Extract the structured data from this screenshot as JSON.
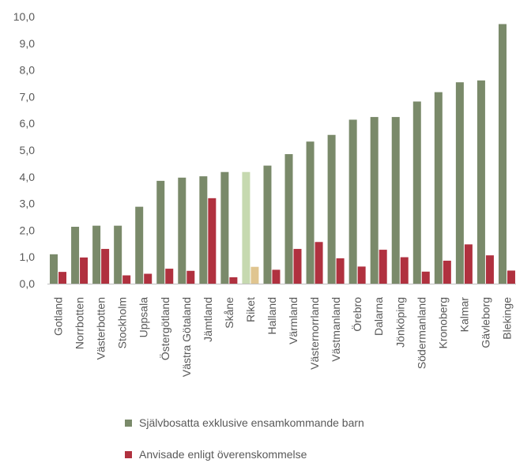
{
  "chart_data": {
    "type": "bar",
    "categories": [
      "Gotland",
      "Norrbotten",
      "Västerbotten",
      "Stockholm",
      "Uppsala",
      "Östergötland",
      "Västra Götaland",
      "Jämtland",
      "Skåne",
      "Riket",
      "Halland",
      "Värmland",
      "Västernorrland",
      "Västmanland",
      "Örebro",
      "Dalarna",
      "Jönköping",
      "Södermanland",
      "Kronoberg",
      "Kalmar",
      "Gävleborg",
      "Blekinge"
    ],
    "series": [
      {
        "name": "Självbosatta exklusive ensamkommande barn",
        "color": "#7a8a6a",
        "highlight_color": "#c6d9b0",
        "values": [
          1.1,
          2.13,
          2.17,
          2.17,
          2.88,
          3.85,
          3.97,
          4.02,
          4.18,
          4.18,
          4.42,
          4.85,
          5.32,
          5.57,
          6.14,
          6.24,
          6.24,
          6.82,
          7.17,
          7.54,
          7.61,
          9.72
        ]
      },
      {
        "name": "Anvisade enligt överenskommelse",
        "color": "#b0313f",
        "highlight_color": "#e0c590",
        "values": [
          0.44,
          0.98,
          1.3,
          0.31,
          0.37,
          0.56,
          0.48,
          3.2,
          0.24,
          0.63,
          0.52,
          1.3,
          1.56,
          0.95,
          0.64,
          1.27,
          0.99,
          0.45,
          0.86,
          1.47,
          1.06,
          0.49
        ]
      }
    ],
    "highlight_category": "Riket",
    "ylim": [
      0,
      10
    ],
    "yticks": [
      "0,0",
      "1,0",
      "2,0",
      "3,0",
      "4,0",
      "5,0",
      "6,0",
      "7,0",
      "8,0",
      "9,0",
      "10,0"
    ],
    "grid": false,
    "legend_position": "bottom"
  }
}
